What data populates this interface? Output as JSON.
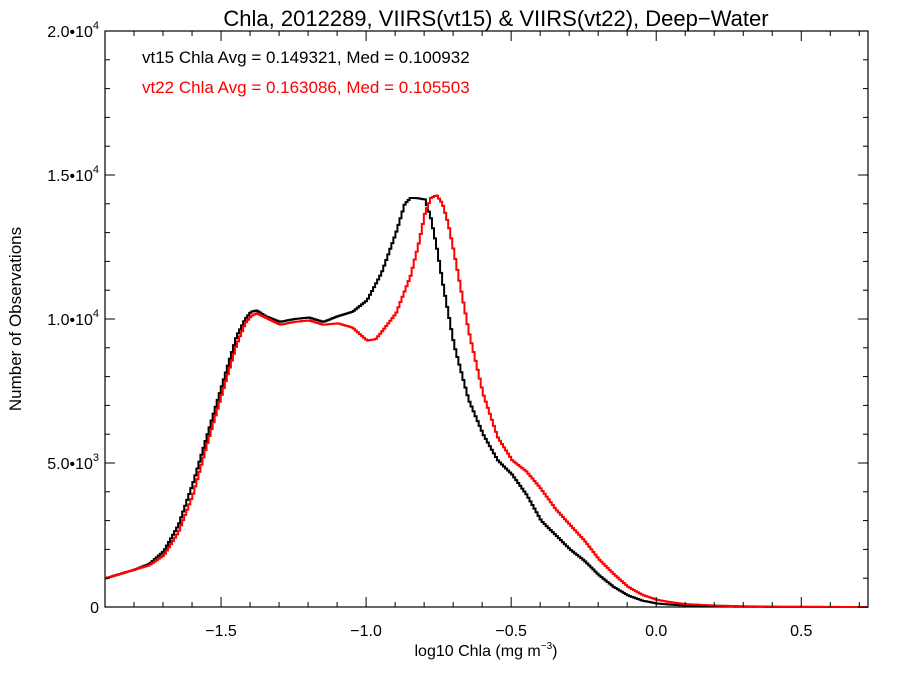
{
  "chart_data": {
    "type": "line",
    "title": "Chla, 2012289, VIIRS(vt15) & VIIRS(vt22), Deep−Water",
    "xlabel": "log10 Chla (mg m",
    "xlabel_sup": "−3",
    "xlabel_close": ")",
    "ylabel": "Number of Observations",
    "xlim": [
      -1.9,
      0.73
    ],
    "ylim": [
      0,
      20000
    ],
    "grid": false,
    "x_ticks": [
      {
        "value": -1.5,
        "label": "−1.5"
      },
      {
        "value": -1.0,
        "label": "−1.0"
      },
      {
        "value": -0.5,
        "label": "−0.5"
      },
      {
        "value": 0.0,
        "label": "0.0"
      },
      {
        "value": 0.5,
        "label": "0.5"
      }
    ],
    "y_ticks": [
      {
        "value": 0,
        "label": "0",
        "sup": ""
      },
      {
        "value": 5000,
        "label": "5.0•10",
        "sup": "3"
      },
      {
        "value": 10000,
        "label": "1.0•10",
        "sup": "4"
      },
      {
        "value": 15000,
        "label": "1.5•10",
        "sup": "4"
      },
      {
        "value": 20000,
        "label": "2.0•10",
        "sup": "4"
      }
    ],
    "annotations": [
      {
        "text": "vt15 Chla Avg = 0.149321, Med = 0.100932",
        "color": "#000000"
      },
      {
        "text": "vt22 Chla Avg = 0.163086, Med = 0.105503",
        "color": "#ff0000"
      }
    ],
    "series": [
      {
        "color": "#000000",
        "x": [
          -1.9,
          -1.85,
          -1.8,
          -1.75,
          -1.7,
          -1.65,
          -1.6,
          -1.55,
          -1.5,
          -1.45,
          -1.42,
          -1.4,
          -1.38,
          -1.35,
          -1.3,
          -1.25,
          -1.2,
          -1.15,
          -1.1,
          -1.05,
          -1.0,
          -0.95,
          -0.9,
          -0.87,
          -0.85,
          -0.83,
          -0.8,
          -0.78,
          -0.76,
          -0.74,
          -0.72,
          -0.7,
          -0.65,
          -0.6,
          -0.55,
          -0.5,
          -0.45,
          -0.4,
          -0.35,
          -0.3,
          -0.25,
          -0.2,
          -0.15,
          -0.1,
          -0.05,
          0.0,
          0.05,
          0.1,
          0.2,
          0.3,
          0.4,
          0.5,
          0.6,
          0.73
        ],
        "y": [
          1000,
          1150,
          1300,
          1500,
          1950,
          2850,
          4300,
          6000,
          7700,
          9400,
          10000,
          10250,
          10300,
          10100,
          9900,
          10000,
          10050,
          9900,
          10100,
          10250,
          10650,
          11600,
          13000,
          14000,
          14200,
          14200,
          14150,
          13500,
          12500,
          11300,
          10200,
          9100,
          7200,
          6000,
          5100,
          4600,
          3900,
          3000,
          2500,
          2000,
          1600,
          1100,
          700,
          400,
          220,
          120,
          80,
          50,
          25,
          10,
          5,
          3,
          2,
          0
        ]
      },
      {
        "color": "#ff0000",
        "x": [
          -1.9,
          -1.85,
          -1.8,
          -1.75,
          -1.7,
          -1.65,
          -1.6,
          -1.55,
          -1.5,
          -1.45,
          -1.42,
          -1.4,
          -1.38,
          -1.35,
          -1.3,
          -1.25,
          -1.2,
          -1.15,
          -1.1,
          -1.05,
          -1.0,
          -0.97,
          -0.95,
          -0.9,
          -0.85,
          -0.82,
          -0.8,
          -0.78,
          -0.76,
          -0.74,
          -0.72,
          -0.7,
          -0.65,
          -0.6,
          -0.55,
          -0.5,
          -0.45,
          -0.4,
          -0.35,
          -0.3,
          -0.25,
          -0.2,
          -0.15,
          -0.1,
          -0.05,
          0.0,
          0.05,
          0.1,
          0.2,
          0.3,
          0.4,
          0.5,
          0.6,
          0.73
        ],
        "y": [
          1000,
          1150,
          1300,
          1450,
          1800,
          2600,
          3900,
          5700,
          7400,
          9100,
          9850,
          10100,
          10200,
          10050,
          9800,
          9900,
          9950,
          9800,
          9850,
          9700,
          9250,
          9300,
          9550,
          10200,
          11500,
          12700,
          13700,
          14200,
          14300,
          14000,
          13300,
          12300,
          9600,
          7400,
          5900,
          5100,
          4700,
          4100,
          3400,
          2850,
          2300,
          1650,
          1150,
          700,
          420,
          250,
          160,
          100,
          50,
          25,
          12,
          6,
          3,
          0
        ]
      }
    ]
  }
}
